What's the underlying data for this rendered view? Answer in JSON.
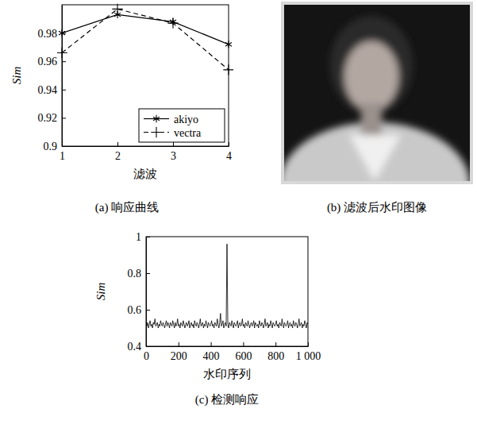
{
  "chart_data": [
    {
      "type": "line",
      "title": "(a) 响应曲线",
      "x_label": "滤波",
      "y_label": "Sim",
      "x": [
        1,
        2,
        3,
        4
      ],
      "xlim": [
        1,
        4
      ],
      "xticks": [
        1,
        2,
        3,
        4
      ],
      "ylim": [
        0.9,
        1.0
      ],
      "yticks": [
        0.9,
        0.92,
        0.94,
        0.96,
        0.98
      ],
      "legend": "lower right",
      "series": [
        {
          "name": "akiyo",
          "color": "#000000",
          "marker": "asterisk",
          "line_style": "solid",
          "values": [
            0.98,
            0.993,
            0.988,
            0.972
          ]
        },
        {
          "name": "vectra",
          "color": "#000000",
          "marker": "plus",
          "line_style": "dashed",
          "values": [
            0.966,
            0.997,
            0.987,
            0.954
          ]
        }
      ]
    },
    {
      "type": "line",
      "title": "(c) 检测响应",
      "x_label": "水印序列",
      "y_label": "Sim",
      "x": [
        0,
        5,
        10,
        15,
        20,
        25,
        30,
        35,
        40,
        45,
        50,
        55,
        60,
        65,
        70,
        75,
        80,
        85,
        90,
        95,
        100,
        105,
        110,
        115,
        120,
        125,
        130,
        135,
        140,
        145,
        150,
        155,
        160,
        165,
        170,
        175,
        180,
        185,
        190,
        195,
        200,
        205,
        210,
        215,
        220,
        225,
        230,
        235,
        240,
        245,
        250,
        255,
        260,
        265,
        270,
        275,
        280,
        285,
        290,
        295,
        300,
        305,
        310,
        315,
        320,
        325,
        330,
        335,
        340,
        345,
        350,
        355,
        360,
        365,
        370,
        375,
        380,
        385,
        390,
        395,
        400,
        405,
        410,
        415,
        420,
        425,
        430,
        435,
        440,
        445,
        450,
        455,
        460,
        465,
        470,
        475,
        480,
        485,
        490,
        495,
        500,
        505,
        510,
        515,
        520,
        525,
        530,
        535,
        540,
        545,
        550,
        555,
        560,
        565,
        570,
        575,
        580,
        585,
        590,
        595,
        600,
        605,
        610,
        615,
        620,
        625,
        630,
        635,
        640,
        645,
        650,
        655,
        660,
        665,
        670,
        675,
        680,
        685,
        690,
        695,
        700,
        705,
        710,
        715,
        720,
        725,
        730,
        735,
        740,
        745,
        750,
        755,
        760,
        765,
        770,
        775,
        780,
        785,
        790,
        795,
        800,
        805,
        810,
        815,
        820,
        825,
        830,
        835,
        840,
        845,
        850,
        855,
        860,
        865,
        870,
        875,
        880,
        885,
        890,
        895,
        900,
        905,
        910,
        915,
        920,
        925,
        930,
        935,
        940,
        945,
        950,
        955,
        960,
        965,
        970,
        975,
        980,
        985,
        990,
        995,
        1000
      ],
      "xlim": [
        0,
        1000
      ],
      "xticks": [
        0,
        200,
        400,
        600,
        800,
        {
          "value": 1000,
          "label": "1 000"
        }
      ],
      "ylim": [
        0.4,
        1
      ],
      "yticks": [
        0.4,
        0.6,
        0.8,
        1
      ],
      "series": [
        {
          "color": "#000000",
          "line_style": "solid",
          "values": [
            0.52,
            0.51,
            0.53,
            0.5,
            0.52,
            0.54,
            0.51,
            0.52,
            0.5,
            0.53,
            0.52,
            0.55,
            0.51,
            0.52,
            0.53,
            0.5,
            0.52,
            0.51,
            0.54,
            0.52,
            0.51,
            0.53,
            0.52,
            0.5,
            0.52,
            0.54,
            0.51,
            0.53,
            0.52,
            0.5,
            0.53,
            0.52,
            0.51,
            0.54,
            0.52,
            0.5,
            0.53,
            0.51,
            0.52,
            0.55,
            0.51,
            0.52,
            0.5,
            0.53,
            0.52,
            0.51,
            0.54,
            0.52,
            0.5,
            0.52,
            0.53,
            0.51,
            0.52,
            0.54,
            0.5,
            0.52,
            0.53,
            0.51,
            0.52,
            0.5,
            0.54,
            0.52,
            0.51,
            0.53,
            0.52,
            0.5,
            0.52,
            0.55,
            0.51,
            0.52,
            0.53,
            0.5,
            0.52,
            0.51,
            0.54,
            0.52,
            0.5,
            0.53,
            0.52,
            0.51,
            0.52,
            0.54,
            0.51,
            0.52,
            0.5,
            0.53,
            0.52,
            0.51,
            0.55,
            0.52,
            0.5,
            0.53,
            0.58,
            0.51,
            0.52,
            0.54,
            0.5,
            0.52,
            0.53,
            0.51,
            0.96,
            0.52,
            0.5,
            0.53,
            0.52,
            0.51,
            0.54,
            0.52,
            0.5,
            0.53,
            0.52,
            0.51,
            0.52,
            0.54,
            0.5,
            0.52,
            0.53,
            0.51,
            0.52,
            0.55,
            0.51,
            0.52,
            0.5,
            0.53,
            0.52,
            0.51,
            0.54,
            0.52,
            0.5,
            0.52,
            0.53,
            0.51,
            0.52,
            0.54,
            0.5,
            0.53,
            0.52,
            0.51,
            0.52,
            0.5,
            0.54,
            0.52,
            0.51,
            0.53,
            0.52,
            0.5,
            0.52,
            0.55,
            0.51,
            0.52,
            0.53,
            0.5,
            0.52,
            0.51,
            0.54,
            0.52,
            0.5,
            0.53,
            0.52,
            0.51,
            0.52,
            0.54,
            0.51,
            0.52,
            0.5,
            0.53,
            0.52,
            0.51,
            0.55,
            0.52,
            0.5,
            0.53,
            0.52,
            0.51,
            0.52,
            0.54,
            0.5,
            0.52,
            0.53,
            0.51,
            0.52,
            0.5,
            0.54,
            0.52,
            0.51,
            0.53,
            0.52,
            0.5,
            0.52,
            0.55,
            0.51,
            0.52,
            0.53,
            0.5,
            0.52,
            0.51,
            0.54,
            0.52,
            0.5,
            0.53,
            0.52
          ]
        }
      ]
    }
  ],
  "image": {
    "caption": "(b) 滤波后水印图像"
  }
}
